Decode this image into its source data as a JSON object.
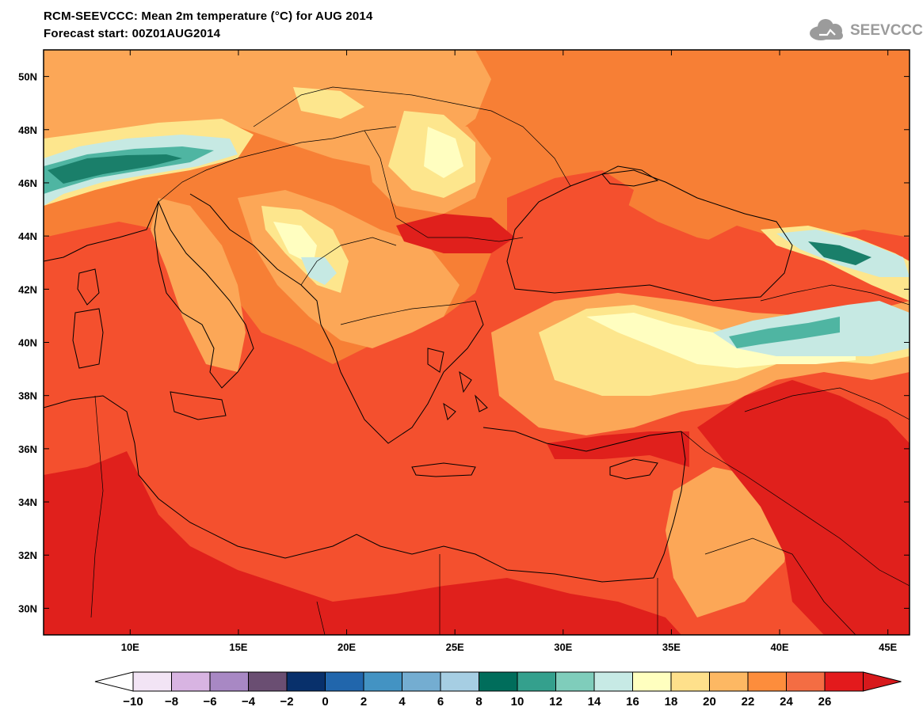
{
  "header": {
    "title_line1": "RCM-SEEVCCC: Mean 2m temperature (°C) for AUG 2014",
    "title_line2": "Forecast start: 00Z01AUG2014",
    "logo_text": "SEEVCCC"
  },
  "map": {
    "lat_labels": [
      "50N",
      "48N",
      "46N",
      "44N",
      "42N",
      "40N",
      "38N",
      "36N",
      "34N",
      "32N",
      "30N"
    ],
    "lat_values": [
      50,
      48,
      46,
      44,
      42,
      40,
      38,
      36,
      34,
      32,
      30
    ],
    "lon_labels": [
      "10E",
      "15E",
      "20E",
      "25E",
      "30E",
      "35E",
      "40E",
      "45E"
    ],
    "lon_values": [
      10,
      15,
      20,
      25,
      30,
      35,
      40,
      45
    ],
    "lon_range": [
      6.0,
      46.0
    ],
    "lat_range": [
      29.0,
      51.0
    ]
  },
  "colorbar": {
    "labels": [
      "-10",
      "-8",
      "-6",
      "-4",
      "-2",
      "0",
      "2",
      "4",
      "6",
      "8",
      "10",
      "12",
      "14",
      "16",
      "18",
      "20",
      "22",
      "24",
      "26"
    ],
    "colors": [
      "#f2e4f5",
      "#d8b4e2",
      "#a888c4",
      "#6a4e72",
      "#08306b",
      "#2166ac",
      "#4393c3",
      "#74add1",
      "#a6cee3",
      "#006d5b",
      "#34a08d",
      "#7fcdbb",
      "#c7eae5",
      "#ffffbf",
      "#fee08b",
      "#fdb863",
      "#fd8d3c",
      "#f46d43",
      "#e31a1c"
    ],
    "under_color": "#ffffff",
    "over_color": "#d7191c"
  },
  "colors": {
    "base_sea": "#f4502e",
    "deep_red": "#e0201c",
    "orange": "#f77f35",
    "light_orange": "#fca757",
    "yellow_light": "#fde68d",
    "cream": "#fffec0",
    "teal_light": "#c6e9e3",
    "teal_mid": "#4fb5a2",
    "teal_dark": "#1a7f6a"
  }
}
